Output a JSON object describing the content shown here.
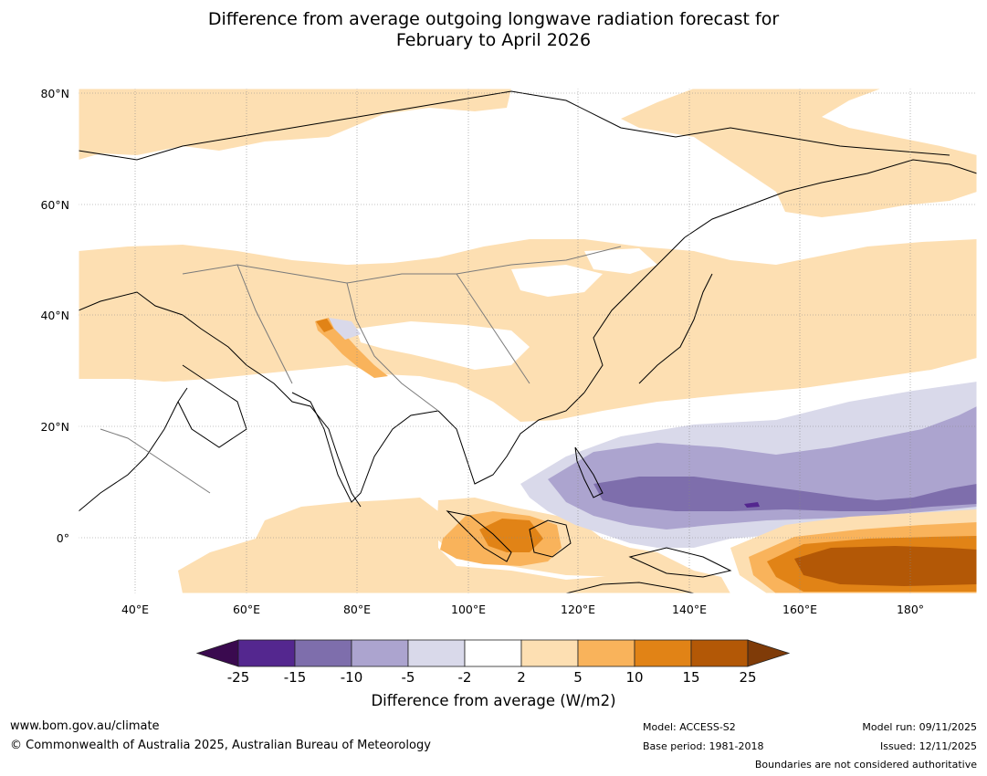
{
  "title": {
    "line1": "Difference from average outgoing longwave radiation forecast for",
    "line2": "February to April 2026"
  },
  "map": {
    "lat_labels": [
      "80°N",
      "60°N",
      "40°N",
      "20°N",
      "0°"
    ],
    "lon_labels": [
      "40°E",
      "60°E",
      "80°E",
      "100°E",
      "120°E",
      "140°E",
      "160°E",
      "180°"
    ]
  },
  "colorbar": {
    "ticks": [
      "-25",
      "-15",
      "-10",
      "-5",
      "-2",
      "2",
      "5",
      "10",
      "15",
      "25"
    ],
    "colors": [
      "#3a0a4f",
      "#54278f",
      "#7e6eac",
      "#aca4cf",
      "#d9d9ea",
      "#ffffff",
      "#fddfb2",
      "#f9b35b",
      "#e18316",
      "#b35806",
      "#7f3b08"
    ],
    "label": "Difference from average (W/m2)"
  },
  "footer": {
    "website": "www.bom.gov.au/climate",
    "copyright": "© Commonwealth of Australia 2025, Australian Bureau of Meteorology",
    "model": "Model: ACCESS-S2",
    "base_period": "Base period: 1981-2018",
    "model_run": "Model run: 09/11/2025",
    "issued": "Issued: 12/11/2025",
    "disclaimer": "Boundaries are not considered authoritative"
  }
}
